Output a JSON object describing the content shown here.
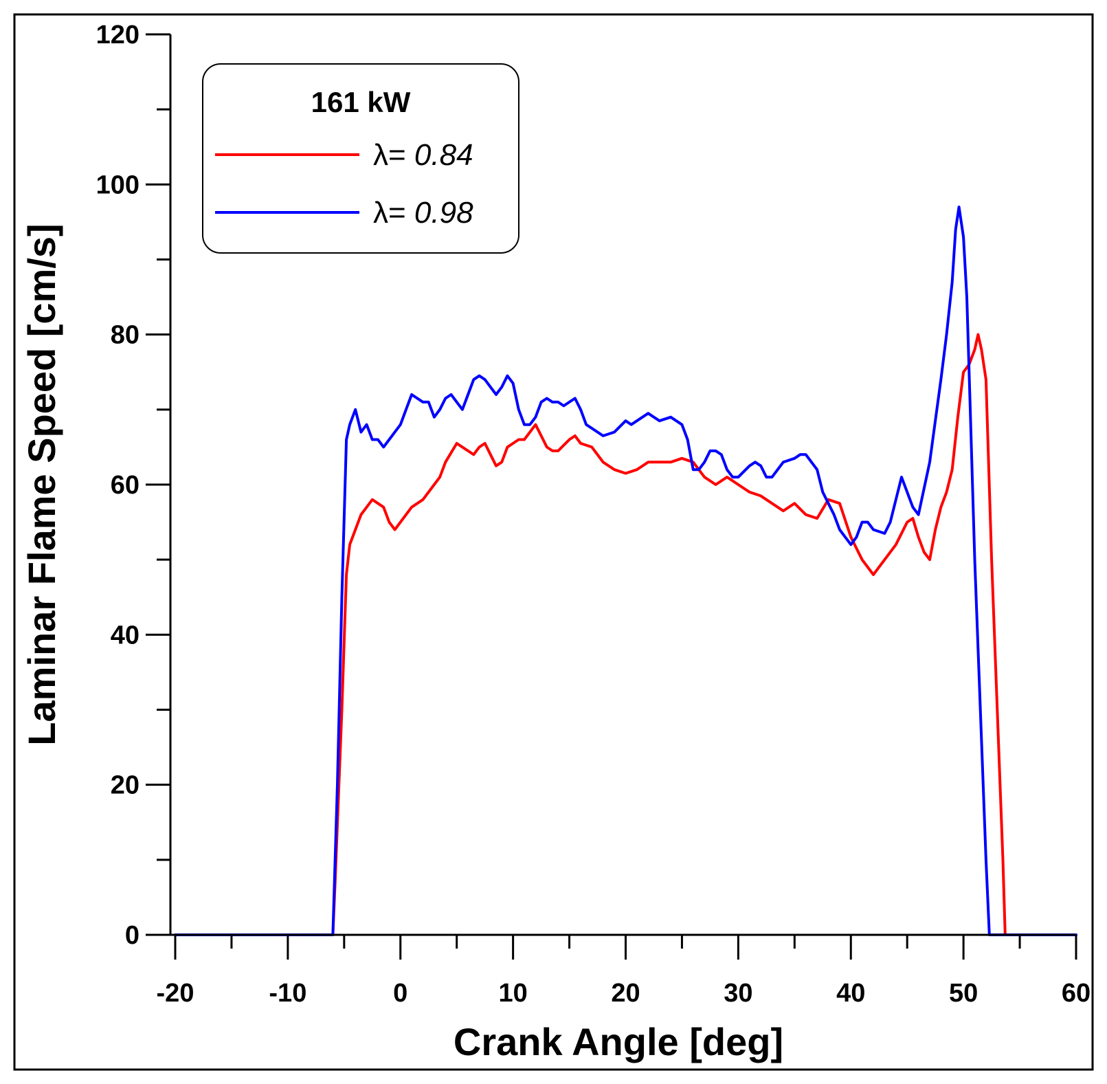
{
  "chart_data": {
    "type": "line",
    "title": "",
    "xlabel": "Crank Angle [deg]",
    "ylabel": "Laminar Flame Speed [cm/s]",
    "xlim": [
      -20,
      60
    ],
    "ylim": [
      0,
      120
    ],
    "x_ticks": [
      -20,
      -10,
      0,
      10,
      20,
      30,
      40,
      50,
      60
    ],
    "y_ticks": [
      0,
      20,
      40,
      60,
      80,
      100,
      120
    ],
    "x_minor_step": 5,
    "y_minor_step": 10,
    "grid": false,
    "legend": {
      "title": "161 kW",
      "position": "top-left",
      "prefix": "λ= "
    },
    "series": [
      {
        "name": "0.84",
        "color": "#ff0000",
        "points": [
          [
            -20,
            0
          ],
          [
            -6,
            0
          ],
          [
            -5.8,
            7
          ],
          [
            -5.2,
            30
          ],
          [
            -4.8,
            48
          ],
          [
            -4.5,
            52
          ],
          [
            -4,
            54
          ],
          [
            -3.5,
            56
          ],
          [
            -3,
            57
          ],
          [
            -2.5,
            58
          ],
          [
            -2,
            57.5
          ],
          [
            -1.5,
            57
          ],
          [
            -1,
            55
          ],
          [
            -0.5,
            54
          ],
          [
            0,
            55
          ],
          [
            0.5,
            56
          ],
          [
            1,
            57
          ],
          [
            1.5,
            57.5
          ],
          [
            2,
            58
          ],
          [
            3,
            60
          ],
          [
            3.5,
            61
          ],
          [
            4,
            63
          ],
          [
            5,
            65.5
          ],
          [
            5.5,
            65
          ],
          [
            6,
            64.5
          ],
          [
            6.5,
            64
          ],
          [
            7,
            65
          ],
          [
            7.5,
            65.5
          ],
          [
            8,
            64
          ],
          [
            8.5,
            62.5
          ],
          [
            9,
            63
          ],
          [
            9.5,
            65
          ],
          [
            10,
            65.5
          ],
          [
            10.5,
            66
          ],
          [
            11,
            66
          ],
          [
            12,
            68
          ],
          [
            12.5,
            66.5
          ],
          [
            13,
            65
          ],
          [
            13.5,
            64.5
          ],
          [
            14,
            64.5
          ],
          [
            15,
            66
          ],
          [
            15.5,
            66.5
          ],
          [
            16,
            65.5
          ],
          [
            17,
            65
          ],
          [
            18,
            63
          ],
          [
            19,
            62
          ],
          [
            20,
            61.5
          ],
          [
            21,
            62
          ],
          [
            22,
            63
          ],
          [
            23,
            63
          ],
          [
            24,
            63
          ],
          [
            25,
            63.5
          ],
          [
            26,
            63
          ],
          [
            27,
            61
          ],
          [
            28,
            60
          ],
          [
            29,
            61
          ],
          [
            30,
            60
          ],
          [
            31,
            59
          ],
          [
            32,
            58.5
          ],
          [
            33,
            57.5
          ],
          [
            34,
            56.5
          ],
          [
            35,
            57.5
          ],
          [
            36,
            56
          ],
          [
            37,
            55.5
          ],
          [
            38,
            58
          ],
          [
            39,
            57.5
          ],
          [
            40,
            53
          ],
          [
            41,
            50
          ],
          [
            42,
            48
          ],
          [
            42.5,
            49
          ],
          [
            43,
            50
          ],
          [
            44,
            52
          ],
          [
            45,
            55
          ],
          [
            45.5,
            55.5
          ],
          [
            46,
            53
          ],
          [
            46.5,
            51
          ],
          [
            47,
            50
          ],
          [
            47.5,
            54
          ],
          [
            48,
            57
          ],
          [
            48.5,
            59
          ],
          [
            49,
            62
          ],
          [
            49.5,
            69
          ],
          [
            50,
            75
          ],
          [
            50.5,
            76
          ],
          [
            51,
            78
          ],
          [
            51.3,
            80
          ],
          [
            51.6,
            78
          ],
          [
            52,
            74
          ],
          [
            52.5,
            50
          ],
          [
            53,
            30
          ],
          [
            53.5,
            10
          ],
          [
            53.7,
            0
          ],
          [
            60,
            0
          ]
        ]
      },
      {
        "name": "0.98",
        "color": "#0000ff",
        "points": [
          [
            -20,
            0
          ],
          [
            -6,
            0
          ],
          [
            -5.6,
            20
          ],
          [
            -5.2,
            45
          ],
          [
            -4.8,
            66
          ],
          [
            -4.5,
            68
          ],
          [
            -4,
            70
          ],
          [
            -3.5,
            67
          ],
          [
            -3,
            68
          ],
          [
            -2.5,
            66
          ],
          [
            -2,
            66
          ],
          [
            -1.5,
            65
          ],
          [
            -1,
            66
          ],
          [
            -0.5,
            67
          ],
          [
            0,
            68
          ],
          [
            0.5,
            70
          ],
          [
            1,
            72
          ],
          [
            1.5,
            71.5
          ],
          [
            2,
            71
          ],
          [
            2.5,
            71
          ],
          [
            3,
            69
          ],
          [
            3.5,
            70
          ],
          [
            4,
            71.5
          ],
          [
            4.5,
            72
          ],
          [
            5,
            71
          ],
          [
            5.5,
            70
          ],
          [
            6,
            72
          ],
          [
            6.5,
            74
          ],
          [
            7,
            74.5
          ],
          [
            7.5,
            74
          ],
          [
            8,
            73
          ],
          [
            8.5,
            72
          ],
          [
            9,
            73
          ],
          [
            9.5,
            74.5
          ],
          [
            10,
            73.5
          ],
          [
            10.5,
            70
          ],
          [
            11,
            68
          ],
          [
            11.5,
            68
          ],
          [
            12,
            69
          ],
          [
            12.5,
            71
          ],
          [
            13,
            71.5
          ],
          [
            13.5,
            71
          ],
          [
            14,
            71
          ],
          [
            14.5,
            70.5
          ],
          [
            15,
            71
          ],
          [
            15.5,
            71.5
          ],
          [
            16,
            70
          ],
          [
            16.5,
            68
          ],
          [
            17,
            67.5
          ],
          [
            18,
            66.5
          ],
          [
            19,
            67
          ],
          [
            20,
            68.5
          ],
          [
            20.5,
            68
          ],
          [
            21,
            68.5
          ],
          [
            22,
            69.5
          ],
          [
            22.5,
            69
          ],
          [
            23,
            68.5
          ],
          [
            24,
            69
          ],
          [
            25,
            68
          ],
          [
            25.5,
            66
          ],
          [
            26,
            62
          ],
          [
            26.5,
            62
          ],
          [
            27,
            63
          ],
          [
            27.5,
            64.5
          ],
          [
            28,
            64.5
          ],
          [
            28.5,
            64
          ],
          [
            29,
            62
          ],
          [
            29.5,
            61
          ],
          [
            30,
            61
          ],
          [
            31,
            62.5
          ],
          [
            31.5,
            63
          ],
          [
            32,
            62.5
          ],
          [
            32.5,
            61
          ],
          [
            33,
            61
          ],
          [
            34,
            63
          ],
          [
            35,
            63.5
          ],
          [
            35.5,
            64
          ],
          [
            36,
            64
          ],
          [
            37,
            62
          ],
          [
            37.5,
            59
          ],
          [
            38,
            57.5
          ],
          [
            38.5,
            56
          ],
          [
            39,
            54
          ],
          [
            39.5,
            53
          ],
          [
            40,
            52
          ],
          [
            40.5,
            53
          ],
          [
            41,
            55
          ],
          [
            41.5,
            55
          ],
          [
            42,
            54
          ],
          [
            43,
            53.5
          ],
          [
            43.5,
            55
          ],
          [
            44,
            58
          ],
          [
            44.5,
            61
          ],
          [
            45,
            59
          ],
          [
            45.5,
            57
          ],
          [
            46,
            56
          ],
          [
            47,
            63
          ],
          [
            48,
            74
          ],
          [
            48.5,
            80
          ],
          [
            49,
            87
          ],
          [
            49.3,
            94
          ],
          [
            49.6,
            97
          ],
          [
            50,
            93
          ],
          [
            50.3,
            85
          ],
          [
            50.6,
            70
          ],
          [
            51,
            50
          ],
          [
            51.5,
            30
          ],
          [
            52,
            10
          ],
          [
            52.3,
            0
          ],
          [
            60,
            0
          ]
        ]
      }
    ]
  }
}
